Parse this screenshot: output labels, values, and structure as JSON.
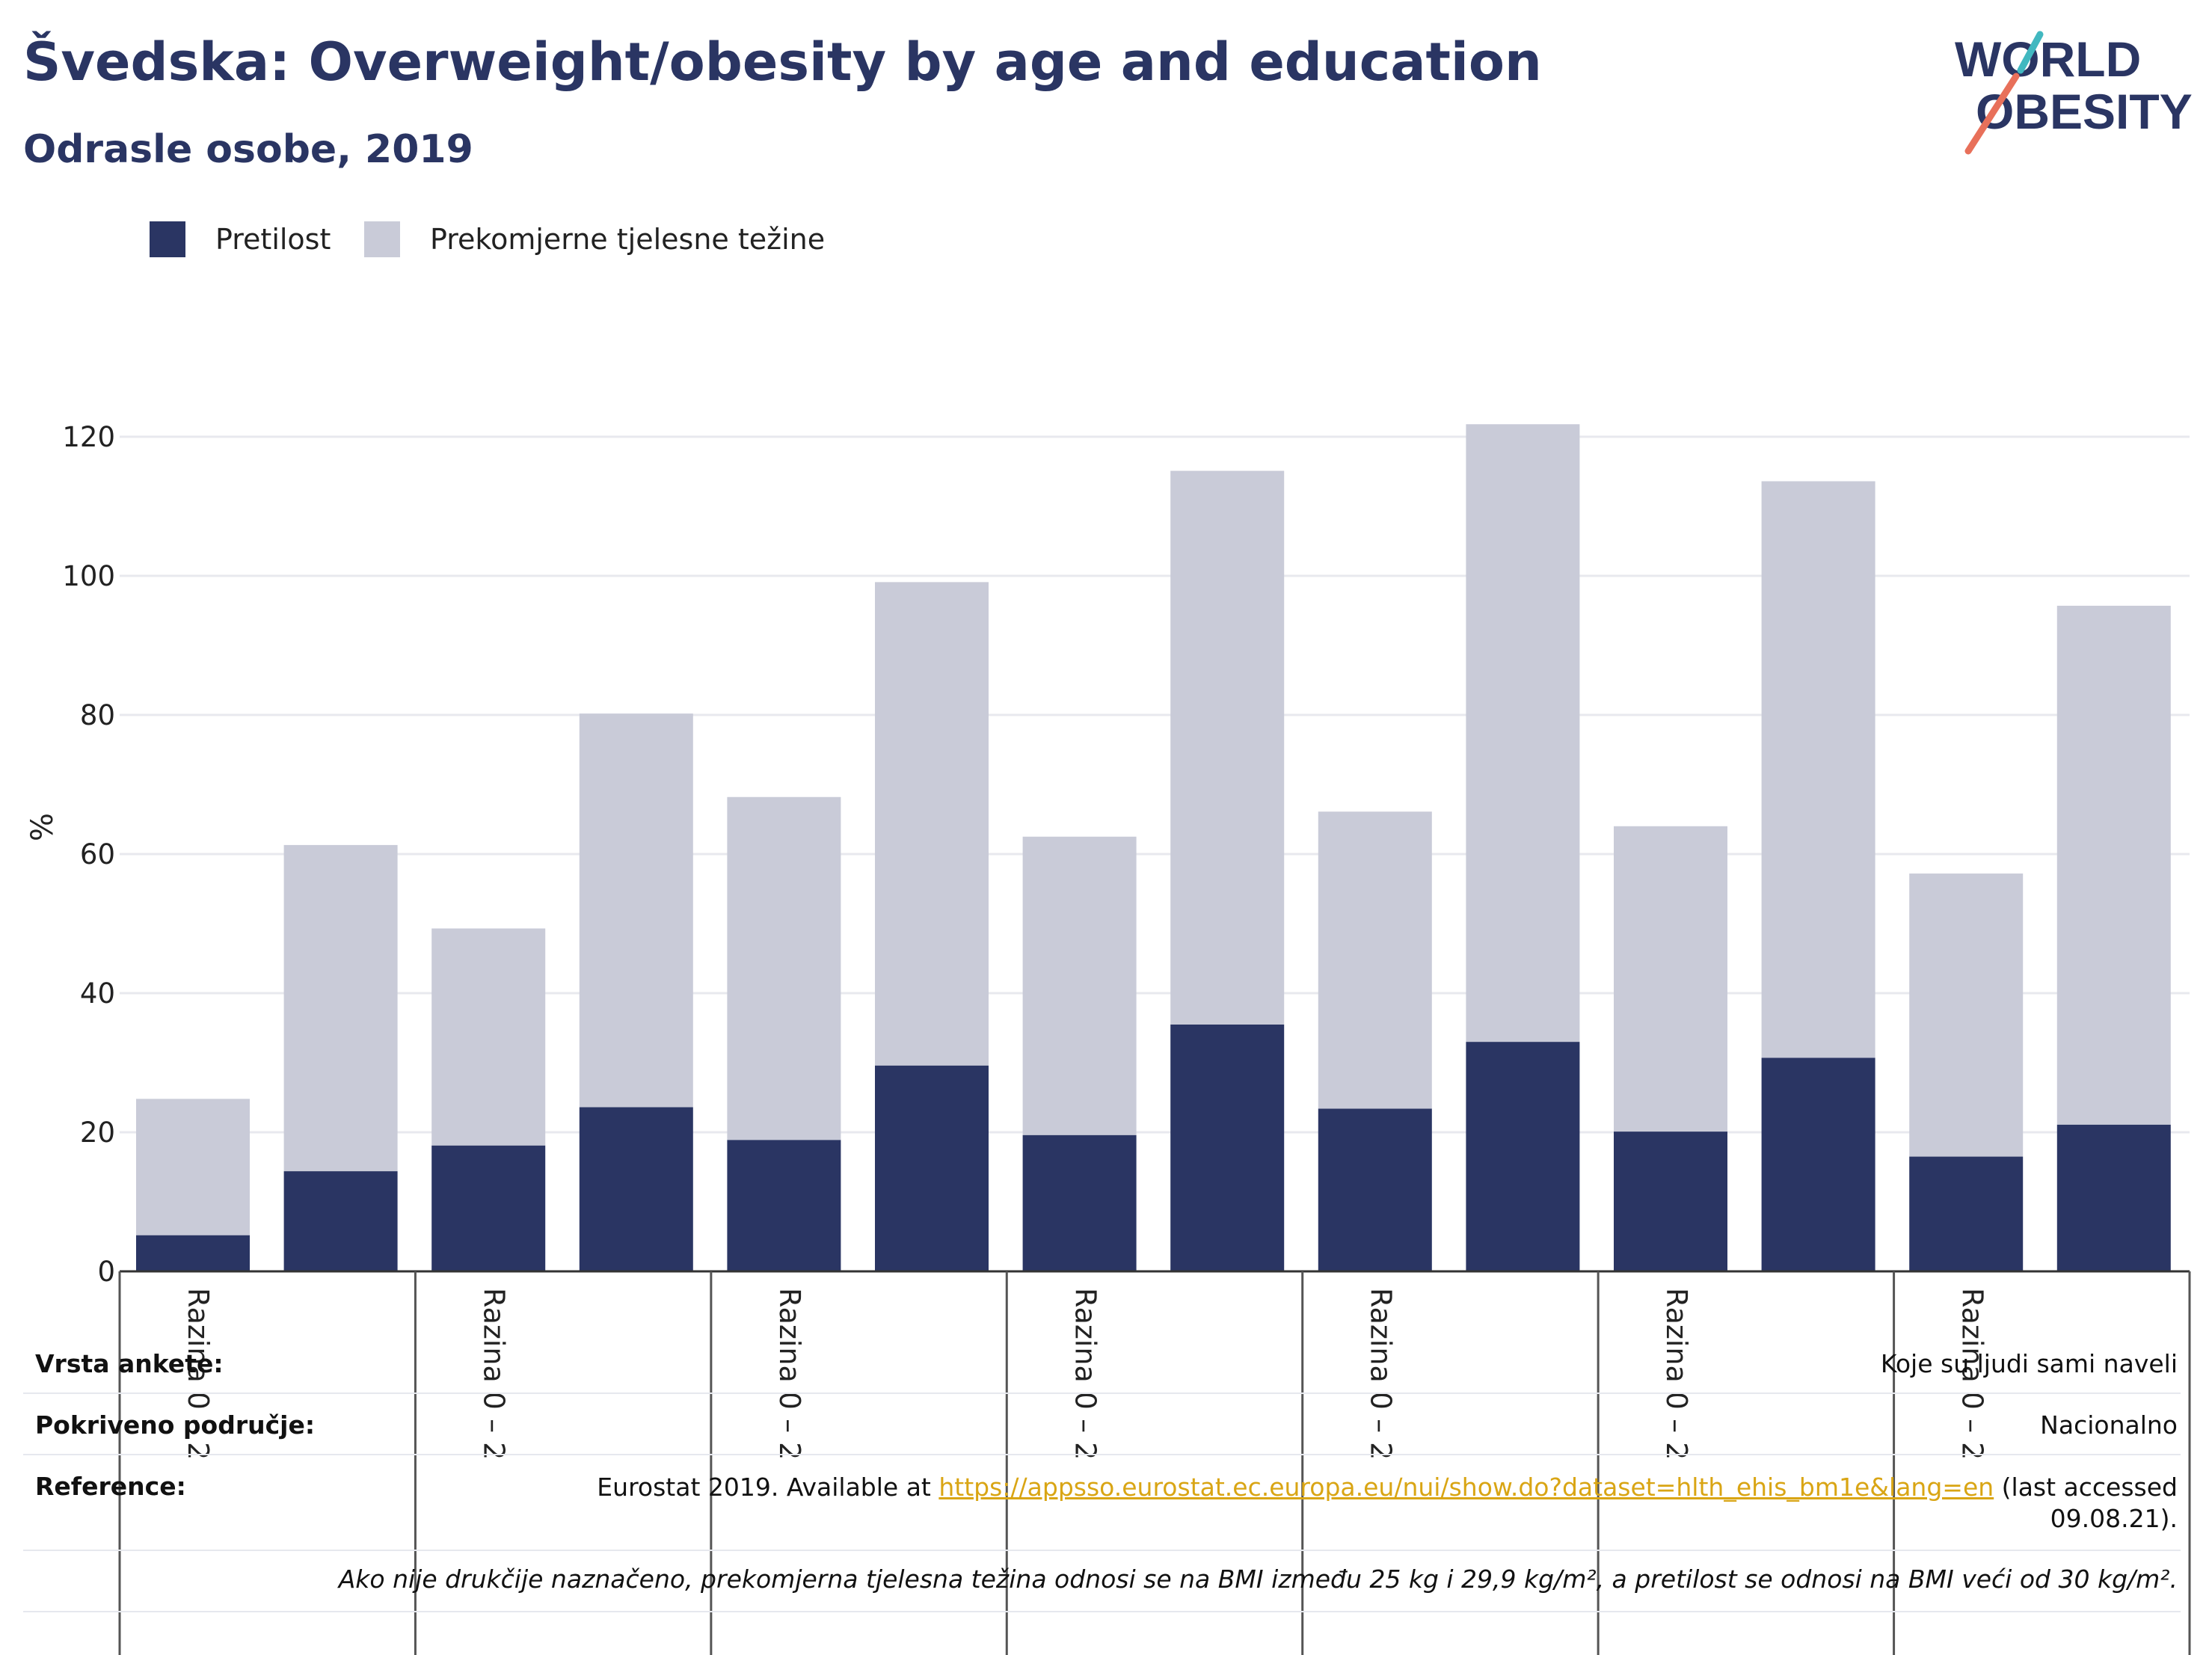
{
  "header": {
    "title": "Švedska: Overweight/obesity by age and education",
    "subtitle": "Odrasle osobe, 2019"
  },
  "logo": {
    "line1": "WORLD",
    "line2": "OBESITY",
    "text_color": "#2a3563",
    "stroke_colors": [
      "#e8705a",
      "#41b8c0"
    ]
  },
  "colors": {
    "obesity": "#2a3563",
    "overweight": "#c9cbd8",
    "link": "#d9a514"
  },
  "chart_data": {
    "type": "bar",
    "stacked": true,
    "ylabel": "%",
    "ylim": [
      0,
      130
    ],
    "yticks": [
      0,
      20,
      40,
      60,
      80,
      100,
      120
    ],
    "grid": true,
    "legend_position": "top-left",
    "group_labels": [
      "Razina 0 – 2",
      "Razina 0 – 2",
      "Razina 0 – 2",
      "Razina 0 – 2",
      "Razina 0 – 2",
      "Razina 0 – 2",
      "Razina 0 – 2"
    ],
    "series": [
      {
        "name": "Pretilost",
        "values": [
          5.2,
          14.4,
          18.1,
          23.6,
          18.9,
          29.6,
          19.6,
          35.5,
          23.4,
          33.0,
          20.1,
          30.7,
          16.5,
          21.1
        ]
      },
      {
        "name": "Prekomjerne tjelesne težine",
        "values": [
          19.6,
          46.9,
          31.2,
          56.6,
          49.3,
          69.5,
          42.9,
          79.6,
          42.7,
          88.8,
          43.9,
          82.9,
          40.7,
          74.6
        ]
      }
    ]
  },
  "info": {
    "survey_label": "Vrsta ankete:",
    "survey_value": "Koje su ljudi sami naveli",
    "coverage_label": "Pokriveno područje:",
    "coverage_value": "Nacionalno",
    "reference_label": "Reference:",
    "reference_prefix": "Eurostat 2019. Available at ",
    "reference_link": "https://appsso.eurostat.ec.europa.eu/nui/show.do?dataset=hlth_ehis_bm1e&lang=en",
    "reference_suffix": " (last accessed",
    "reference_date": "09.08.21).",
    "note": "Ako nije drukčije naznačeno, prekomjerna tjelesna težina odnosi se na BMI između 25 kg i 29,9 kg/m², a pretilost se odnosi na BMI veći od 30 kg/m²."
  }
}
